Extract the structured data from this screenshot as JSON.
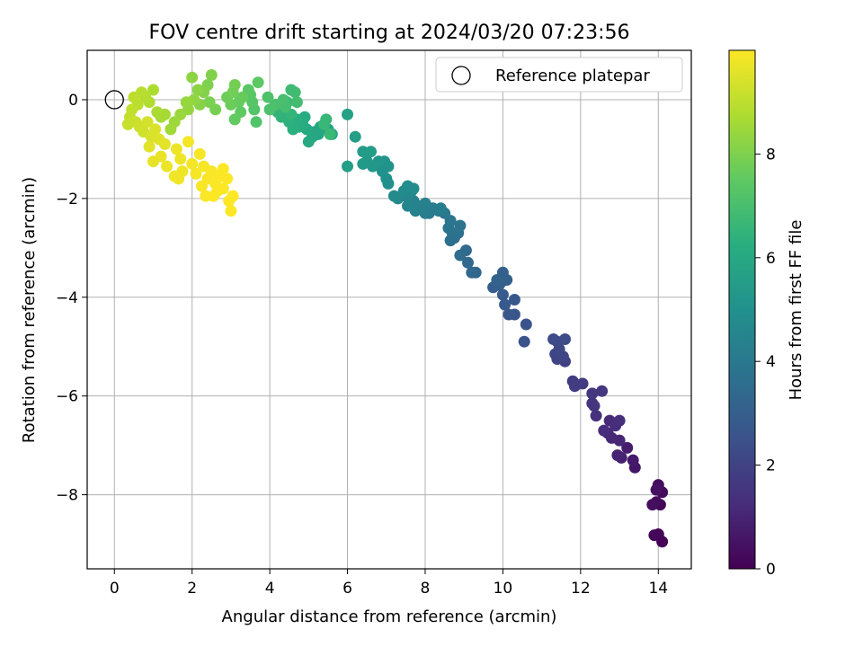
{
  "chart_data": {
    "type": "scatter",
    "title": "FOV centre drift starting at 2024/03/20 07:23:56",
    "xlabel": "Angular distance from reference (arcmin)",
    "ylabel": "Rotation from reference (arcmin)",
    "xlim": [
      -0.7,
      14.85
    ],
    "ylim": [
      -9.5,
      1.0
    ],
    "xticks": [
      0,
      2,
      4,
      6,
      8,
      10,
      12,
      14
    ],
    "yticks": [
      -8,
      -6,
      -4,
      -2,
      0
    ],
    "grid": true,
    "legend": {
      "placement": "top-right",
      "label": "Reference platepar"
    },
    "reference_point": {
      "x": 0,
      "y": 0
    },
    "colorbar": {
      "label": "Hours from first FF file",
      "range": [
        0,
        10
      ],
      "ticks": [
        0,
        2,
        4,
        6,
        8
      ],
      "colormap": "viridis"
    },
    "series": [
      {
        "points": [
          [
            14.1,
            -8.95,
            0.05
          ],
          [
            14.0,
            -8.8,
            0.1
          ],
          [
            13.9,
            -8.82,
            0.15
          ],
          [
            14.05,
            -8.2,
            0.2
          ],
          [
            13.95,
            -8.15,
            0.25
          ],
          [
            14.1,
            -7.95,
            0.3
          ],
          [
            14.0,
            -7.8,
            0.35
          ],
          [
            13.85,
            -8.2,
            0.4
          ],
          [
            13.95,
            -7.9,
            0.45
          ],
          [
            13.4,
            -7.45,
            0.6
          ],
          [
            13.35,
            -7.3,
            0.7
          ],
          [
            13.2,
            -7.05,
            0.8
          ],
          [
            13.05,
            -7.25,
            0.9
          ],
          [
            12.95,
            -7.2,
            1.0
          ],
          [
            13.0,
            -6.9,
            1.05
          ],
          [
            12.8,
            -6.85,
            1.1
          ],
          [
            12.7,
            -6.75,
            1.15
          ],
          [
            12.75,
            -6.5,
            1.2
          ],
          [
            12.6,
            -6.7,
            1.25
          ],
          [
            12.9,
            -6.6,
            1.3
          ],
          [
            13.0,
            -6.5,
            1.35
          ],
          [
            12.4,
            -6.4,
            1.4
          ],
          [
            12.35,
            -6.2,
            1.45
          ],
          [
            12.3,
            -6.15,
            1.5
          ],
          [
            12.3,
            -5.95,
            1.55
          ],
          [
            12.55,
            -5.9,
            1.6
          ],
          [
            12.05,
            -5.75,
            1.7
          ],
          [
            11.8,
            -5.7,
            1.75
          ],
          [
            11.85,
            -5.8,
            1.8
          ],
          [
            11.6,
            -5.3,
            1.9
          ],
          [
            11.4,
            -5.25,
            2.0
          ],
          [
            11.55,
            -5.2,
            2.05
          ],
          [
            11.35,
            -5.15,
            2.1
          ],
          [
            11.45,
            -5.05,
            2.15
          ],
          [
            11.4,
            -4.9,
            2.2
          ],
          [
            11.3,
            -4.85,
            2.25
          ],
          [
            11.6,
            -4.85,
            2.3
          ],
          [
            10.55,
            -4.9,
            2.5
          ],
          [
            10.6,
            -4.55,
            2.55
          ],
          [
            10.3,
            -4.35,
            2.65
          ],
          [
            10.15,
            -4.35,
            2.7
          ],
          [
            10.3,
            -4.05,
            2.75
          ],
          [
            10.05,
            -4.15,
            2.8
          ],
          [
            10.0,
            -3.95,
            2.85
          ],
          [
            9.95,
            -3.7,
            2.9
          ],
          [
            9.75,
            -3.8,
            2.95
          ],
          [
            9.9,
            -3.75,
            3.0
          ],
          [
            10.1,
            -3.65,
            3.05
          ],
          [
            10.0,
            -3.5,
            3.1
          ],
          [
            9.85,
            -3.65,
            3.15
          ],
          [
            9.3,
            -3.5,
            3.3
          ],
          [
            9.2,
            -3.5,
            3.35
          ],
          [
            9.1,
            -3.3,
            3.4
          ],
          [
            9.05,
            -3.05,
            3.45
          ],
          [
            8.9,
            -3.15,
            3.5
          ],
          [
            8.75,
            -2.8,
            3.6
          ],
          [
            8.65,
            -2.85,
            3.65
          ],
          [
            8.7,
            -2.7,
            3.7
          ],
          [
            8.85,
            -2.7,
            3.75
          ],
          [
            8.9,
            -2.55,
            3.8
          ],
          [
            8.6,
            -2.6,
            3.85
          ],
          [
            8.65,
            -2.45,
            3.9
          ],
          [
            8.5,
            -2.3,
            4.0
          ],
          [
            8.35,
            -2.25,
            4.05
          ],
          [
            8.1,
            -2.3,
            4.1
          ],
          [
            8.2,
            -2.2,
            4.15
          ],
          [
            8.4,
            -2.2,
            4.2
          ],
          [
            8.0,
            -2.3,
            4.25
          ],
          [
            8.0,
            -2.1,
            4.3
          ],
          [
            7.9,
            -2.15,
            4.35
          ],
          [
            7.75,
            -2.25,
            4.4
          ],
          [
            7.7,
            -2.05,
            4.45
          ],
          [
            7.55,
            -2.15,
            4.5
          ],
          [
            7.5,
            -1.95,
            4.55
          ],
          [
            7.65,
            -1.85,
            4.6
          ],
          [
            7.3,
            -2.0,
            4.65
          ],
          [
            7.2,
            -1.95,
            4.7
          ],
          [
            7.45,
            -1.85,
            4.75
          ],
          [
            7.55,
            -1.75,
            4.8
          ],
          [
            7.7,
            -1.8,
            4.85
          ],
          [
            7.05,
            -1.7,
            4.9
          ],
          [
            7.0,
            -1.6,
            4.95
          ],
          [
            6.9,
            -1.45,
            5.0
          ],
          [
            6.85,
            -1.3,
            5.05
          ],
          [
            7.05,
            -1.35,
            5.1
          ],
          [
            6.95,
            -1.25,
            5.15
          ],
          [
            6.8,
            -1.25,
            5.2
          ],
          [
            6.65,
            -1.35,
            5.25
          ],
          [
            6.5,
            -1.25,
            5.3
          ],
          [
            6.4,
            -1.3,
            5.35
          ],
          [
            6.5,
            -1.1,
            5.4
          ],
          [
            6.4,
            -1.05,
            5.45
          ],
          [
            6.6,
            -1.05,
            5.5
          ],
          [
            6.0,
            -1.35,
            5.55
          ],
          [
            6.2,
            -0.75,
            5.6
          ],
          [
            6.0,
            -0.3,
            5.65
          ],
          [
            5.6,
            -0.7,
            5.7
          ],
          [
            5.5,
            -0.6,
            5.75
          ],
          [
            5.3,
            -0.55,
            5.8
          ],
          [
            5.25,
            -0.7,
            5.85
          ],
          [
            5.15,
            -0.65,
            5.9
          ],
          [
            5.1,
            -0.75,
            5.95
          ],
          [
            5.0,
            -0.85,
            6.0
          ],
          [
            4.95,
            -0.6,
            6.05
          ],
          [
            4.85,
            -0.5,
            6.1
          ],
          [
            4.9,
            -0.35,
            6.15
          ],
          [
            4.75,
            -0.55,
            6.2
          ],
          [
            4.7,
            -0.4,
            6.25
          ],
          [
            4.6,
            -0.6,
            6.3
          ],
          [
            4.5,
            -0.45,
            6.35
          ],
          [
            4.4,
            -0.3,
            6.4
          ],
          [
            4.3,
            -0.35,
            6.45
          ],
          [
            4.2,
            -0.25,
            6.5
          ],
          [
            4.55,
            -0.3,
            6.55
          ],
          [
            5.45,
            -0.4,
            6.6
          ],
          [
            5.4,
            -0.5,
            6.65
          ],
          [
            5.55,
            -0.7,
            6.7
          ],
          [
            4.45,
            -0.05,
            6.75
          ],
          [
            4.55,
            0.2,
            6.8
          ],
          [
            4.65,
            0.15,
            6.85
          ],
          [
            4.7,
            -0.05,
            6.9
          ],
          [
            4.4,
            -0.15,
            6.95
          ],
          [
            4.35,
            0.0,
            7.0
          ],
          [
            4.15,
            -0.1,
            7.05
          ],
          [
            4.0,
            -0.2,
            7.1
          ],
          [
            3.95,
            0.05,
            7.15
          ],
          [
            3.65,
            -0.45,
            7.2
          ],
          [
            3.6,
            -0.2,
            7.25
          ],
          [
            3.55,
            -0.05,
            7.3
          ],
          [
            3.5,
            0.1,
            7.35
          ],
          [
            3.45,
            0.2,
            7.4
          ],
          [
            3.7,
            0.35,
            7.45
          ],
          [
            3.25,
            -0.25,
            7.5
          ],
          [
            3.1,
            -0.4,
            7.55
          ],
          [
            3.2,
            -0.05,
            7.6
          ],
          [
            3.3,
            0.05,
            7.65
          ],
          [
            3.0,
            -0.1,
            7.7
          ],
          [
            2.9,
            0.05,
            7.75
          ],
          [
            3.05,
            0.15,
            7.8
          ],
          [
            3.1,
            0.3,
            7.85
          ],
          [
            2.6,
            -0.2,
            7.9
          ],
          [
            2.45,
            -0.05,
            7.95
          ],
          [
            2.4,
            0.3,
            8.0
          ],
          [
            2.5,
            0.5,
            8.05
          ],
          [
            2.3,
            0.15,
            8.1
          ],
          [
            2.2,
            -0.1,
            8.15
          ],
          [
            2.15,
            0.2,
            8.2
          ],
          [
            2.0,
            0.45,
            8.25
          ],
          [
            2.05,
            0.0,
            8.3
          ],
          [
            1.9,
            -0.2,
            8.35
          ],
          [
            1.85,
            -0.05,
            8.4
          ],
          [
            1.7,
            -0.3,
            8.45
          ],
          [
            1.55,
            -0.45,
            8.5
          ],
          [
            1.45,
            -0.6,
            8.55
          ],
          [
            1.3,
            -0.3,
            8.6
          ],
          [
            1.2,
            -0.35,
            8.65
          ],
          [
            1.1,
            -0.25,
            8.7
          ],
          [
            1.0,
            0.2,
            8.75
          ],
          [
            0.9,
            -0.05,
            8.8
          ],
          [
            0.8,
            0.05,
            8.85
          ],
          [
            0.7,
            0.15,
            8.9
          ],
          [
            0.6,
            -0.1,
            8.95
          ],
          [
            0.5,
            0.05,
            9.0
          ],
          [
            0.45,
            -0.2,
            9.05
          ],
          [
            0.4,
            -0.35,
            9.1
          ],
          [
            0.35,
            -0.5,
            9.15
          ],
          [
            0.55,
            -0.45,
            9.2
          ],
          [
            0.65,
            -0.55,
            9.25
          ],
          [
            0.75,
            -0.65,
            9.3
          ],
          [
            0.85,
            -0.45,
            9.35
          ],
          [
            0.95,
            -0.75,
            9.4
          ],
          [
            1.05,
            -0.6,
            9.45
          ],
          [
            1.15,
            -0.8,
            9.5
          ],
          [
            0.9,
            -0.95,
            9.55
          ],
          [
            1.3,
            -0.9,
            9.6
          ],
          [
            1.0,
            -1.25,
            9.65
          ],
          [
            1.2,
            -1.15,
            9.7
          ],
          [
            1.35,
            -1.35,
            9.72
          ],
          [
            1.6,
            -1.0,
            9.74
          ],
          [
            1.7,
            -1.2,
            9.76
          ],
          [
            1.75,
            -1.45,
            9.78
          ],
          [
            1.55,
            -1.55,
            9.8
          ],
          [
            1.65,
            -1.6,
            9.82
          ],
          [
            1.9,
            -0.85,
            9.84
          ],
          [
            2.0,
            -1.3,
            9.86
          ],
          [
            2.1,
            -1.5,
            9.88
          ],
          [
            2.2,
            -1.1,
            9.9
          ],
          [
            2.3,
            -1.35,
            9.91
          ],
          [
            2.4,
            -1.6,
            9.92
          ],
          [
            2.5,
            -1.45,
            9.93
          ],
          [
            2.25,
            -1.75,
            9.94
          ],
          [
            2.35,
            -1.95,
            9.95
          ],
          [
            2.6,
            -1.7,
            9.96
          ],
          [
            2.7,
            -1.55,
            9.97
          ],
          [
            2.8,
            -1.8,
            9.98
          ],
          [
            2.55,
            -1.95,
            9.98
          ],
          [
            2.95,
            -2.05,
            9.99
          ],
          [
            3.0,
            -2.25,
            9.99
          ],
          [
            3.05,
            -1.95,
            9.99
          ],
          [
            2.65,
            -1.85,
            9.99
          ],
          [
            2.8,
            -1.4,
            9.99
          ],
          [
            2.9,
            -1.6,
            9.99
          ]
        ]
      }
    ]
  }
}
